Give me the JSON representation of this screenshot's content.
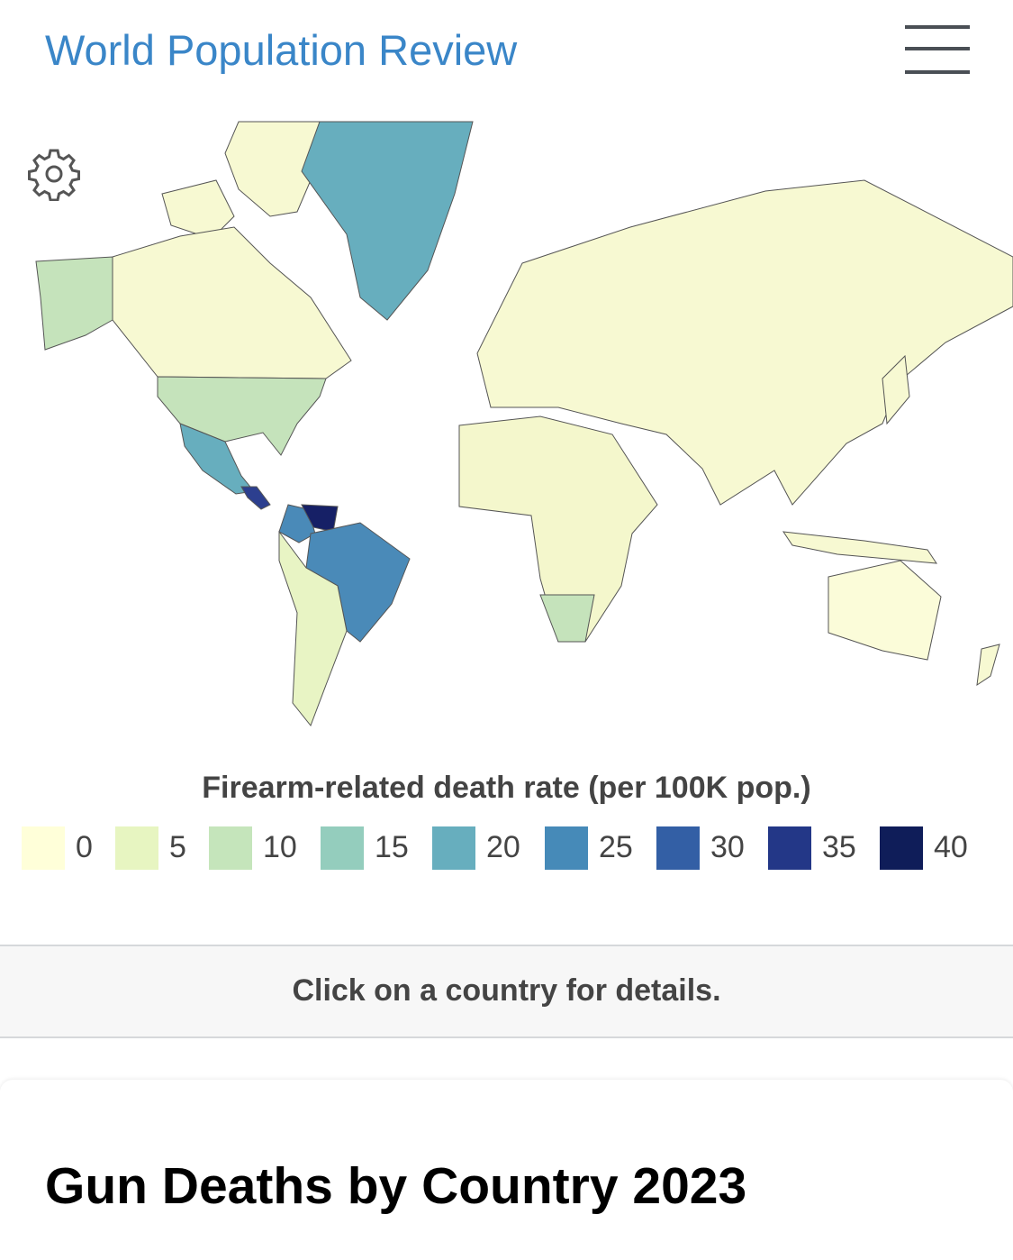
{
  "header": {
    "brand": "World Population Review",
    "menu_icon": "hamburger-icon"
  },
  "map": {
    "settings_icon": "gear-icon",
    "colors": {
      "usa": "#c5e3bb",
      "canada": "#f7f9d2",
      "greenland": "#67aebe",
      "mexico": "#67aebe",
      "brazil": "#4a8ab8",
      "colombia": "#4a8ab8",
      "venezuela": "#162066",
      "central_america": "#2c3f8f",
      "south_america_rest": "#e8f4c4",
      "eurasia": "#f7f9d2",
      "africa": "#f4f7cc",
      "southern_africa": "#c5e3bb",
      "australia": "#fbfcd9",
      "border": "#555555"
    }
  },
  "legend": {
    "title": "Firearm-related death rate (per 100K pop.)",
    "items": [
      {
        "label": "0",
        "color": "#ffffd9"
      },
      {
        "label": "5",
        "color": "#e7f5c1"
      },
      {
        "label": "10",
        "color": "#c5e5bb"
      },
      {
        "label": "15",
        "color": "#94cdbd"
      },
      {
        "label": "20",
        "color": "#67aebe"
      },
      {
        "label": "25",
        "color": "#468ab8"
      },
      {
        "label": "30",
        "color": "#335fa5"
      },
      {
        "label": "35",
        "color": "#233787"
      },
      {
        "label": "40",
        "color": "#0f1d59"
      }
    ]
  },
  "info_band": {
    "text": "Click on a country for details."
  },
  "article": {
    "title": "Gun Deaths by Country 2023"
  }
}
